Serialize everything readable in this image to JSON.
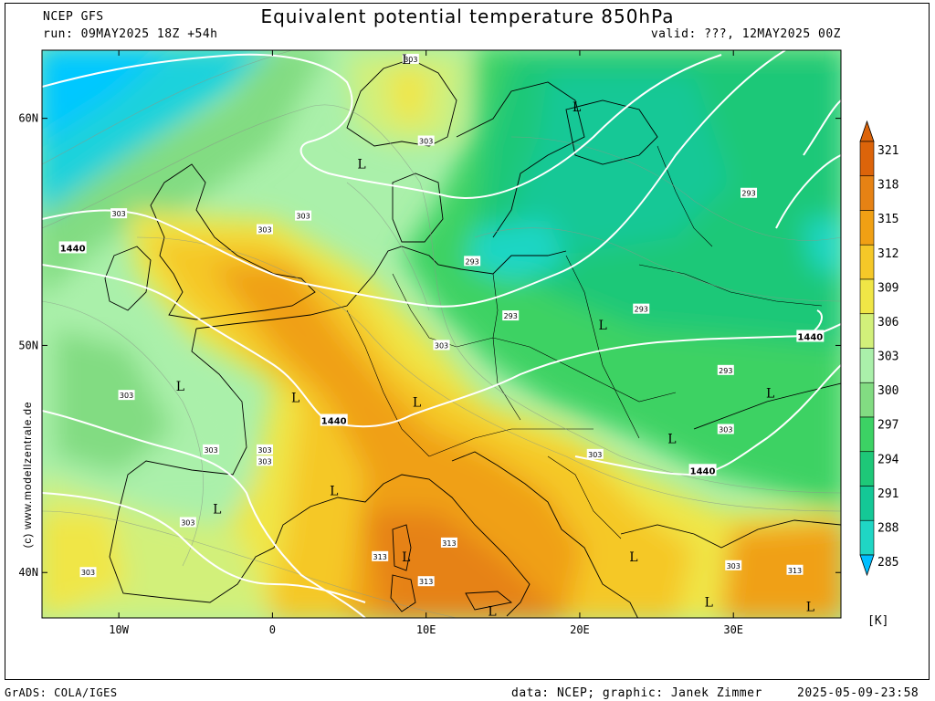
{
  "header": {
    "model": "NCEP GFS",
    "run": "run: 09MAY2025 18Z +54h",
    "title": "Equivalent potential temperature 850hPa",
    "valid": "valid: ???, 12MAY2025 00Z"
  },
  "footer": {
    "software": "GrADS: COLA/IGES",
    "credits": "data: NCEP; graphic: Janek Zimmer",
    "timestamp": "2025-05-09-23:58"
  },
  "watermark": "(c) www.modellzentrale.de",
  "axes": {
    "lon_ticks": [
      {
        "value": -10,
        "label": "10W"
      },
      {
        "value": 0,
        "label": "0"
      },
      {
        "value": 10,
        "label": "10E"
      },
      {
        "value": 20,
        "label": "20E"
      },
      {
        "value": 30,
        "label": "30E"
      }
    ],
    "lat_ticks": [
      {
        "value": 60,
        "label": "60N"
      },
      {
        "value": 50,
        "label": "50N"
      },
      {
        "value": 40,
        "label": "40N"
      }
    ],
    "lon_range": [
      -15,
      37
    ],
    "lat_range": [
      38,
      63
    ]
  },
  "colorbar": {
    "unit": "[K]",
    "levels": [
      285,
      288,
      291,
      294,
      297,
      300,
      303,
      306,
      309,
      312,
      315,
      318,
      321
    ],
    "colors": [
      "#00bfff",
      "#1fd6c4",
      "#14c896",
      "#1ec878",
      "#3cd264",
      "#82dc82",
      "#aaf0aa",
      "#d2f07a",
      "#f0e646",
      "#f5c828",
      "#f0a014",
      "#e68214",
      "#dc640a"
    ]
  },
  "contour_labels": [
    {
      "text": "303",
      "lon": 9,
      "lat": 62.6
    },
    {
      "text": "303",
      "lon": 10,
      "lat": 59
    },
    {
      "text": "303",
      "lon": -10,
      "lat": 55.8
    },
    {
      "text": "303",
      "lon": 2,
      "lat": 55.7
    },
    {
      "text": "303",
      "lon": -0.5,
      "lat": 55.1
    },
    {
      "text": "293",
      "lon": 13,
      "lat": 53.7
    },
    {
      "text": "293",
      "lon": 15.5,
      "lat": 51.3
    },
    {
      "text": "293",
      "lon": 24,
      "lat": 51.6
    },
    {
      "text": "293",
      "lon": 31,
      "lat": 56.7
    },
    {
      "text": "303",
      "lon": 11,
      "lat": 50
    },
    {
      "text": "303",
      "lon": -9.5,
      "lat": 47.8
    },
    {
      "text": "303",
      "lon": -4,
      "lat": 45.4
    },
    {
      "text": "303",
      "lon": -0.5,
      "lat": 45.4
    },
    {
      "text": "303",
      "lon": -0.5,
      "lat": 44.9
    },
    {
      "text": "303",
      "lon": 21,
      "lat": 45.2
    },
    {
      "text": "303",
      "lon": 29.5,
      "lat": 46.3
    },
    {
      "text": "293",
      "lon": 29.5,
      "lat": 48.9
    },
    {
      "text": "303",
      "lon": -5.5,
      "lat": 42.2
    },
    {
      "text": "303",
      "lon": -12,
      "lat": 40
    },
    {
      "text": "303",
      "lon": 30,
      "lat": 40.3
    },
    {
      "text": "313",
      "lon": 7,
      "lat": 40.7
    },
    {
      "text": "313",
      "lon": 11.5,
      "lat": 41.3
    },
    {
      "text": "313",
      "lon": 10,
      "lat": 39.6
    },
    {
      "text": "313",
      "lon": 34,
      "lat": 40.1
    }
  ],
  "height_labels": [
    {
      "text": "1440",
      "lon": -13,
      "lat": 54.3
    },
    {
      "text": "1440",
      "lon": 4,
      "lat": 46.7
    },
    {
      "text": "1440",
      "lon": 28,
      "lat": 44.5
    },
    {
      "text": "1440",
      "lon": 35,
      "lat": 50.4
    }
  ],
  "lows": [
    {
      "text": "L",
      "lon": 8.7,
      "lat": 62.6
    },
    {
      "text": "L",
      "lon": 19.8,
      "lat": 60.5
    },
    {
      "text": "L",
      "lon": 5.8,
      "lat": 58
    },
    {
      "text": "L",
      "lon": 21.5,
      "lat": 50.9
    },
    {
      "text": "L",
      "lon": -6,
      "lat": 48.2
    },
    {
      "text": "L",
      "lon": 1.5,
      "lat": 47.7
    },
    {
      "text": "L",
      "lon": 9.4,
      "lat": 47.5
    },
    {
      "text": "L",
      "lon": 32.4,
      "lat": 47.9
    },
    {
      "text": "L",
      "lon": 26,
      "lat": 45.9
    },
    {
      "text": "L",
      "lon": 4,
      "lat": 43.6
    },
    {
      "text": "L",
      "lon": -3.6,
      "lat": 42.8
    },
    {
      "text": "L",
      "lon": 8.7,
      "lat": 40.7
    },
    {
      "text": "L",
      "lon": 23.5,
      "lat": 40.7
    },
    {
      "text": "L",
      "lon": 14.3,
      "lat": 38.3
    },
    {
      "text": "L",
      "lon": 28.4,
      "lat": 38.7
    },
    {
      "text": "L",
      "lon": 35,
      "lat": 38.5
    }
  ]
}
